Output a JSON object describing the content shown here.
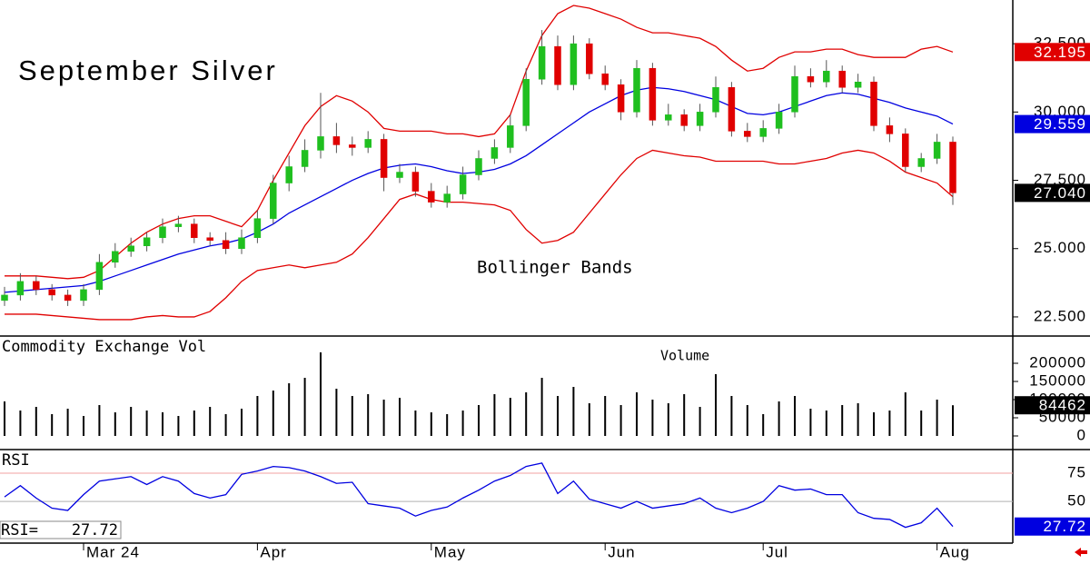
{
  "chart_data": [
    {
      "type": "candlestick",
      "title": "September Silver",
      "annotation": "Bollinger Bands",
      "up_color": "#1fbf1f",
      "down_color": "#e00000",
      "open": [
        23.1,
        23.3,
        23.8,
        23.5,
        23.3,
        23.1,
        23.5,
        24.5,
        24.9,
        25.1,
        25.4,
        25.8,
        25.9,
        25.4,
        25.3,
        25.0,
        25.4,
        26.1,
        27.4,
        28.0,
        28.6,
        29.1,
        28.8,
        28.7,
        29.0,
        27.6,
        27.8,
        27.1,
        26.7,
        27.0,
        27.7,
        28.3,
        28.7,
        29.5,
        31.2,
        32.4,
        31.0,
        32.5,
        31.4,
        31.0,
        30.0,
        31.6,
        29.7,
        29.9,
        29.5,
        30.0,
        30.9,
        29.3,
        29.1,
        29.4,
        30.0,
        31.3,
        31.1,
        31.5,
        30.9,
        31.1,
        29.5,
        29.2,
        28.0,
        28.3,
        28.9
      ],
      "high": [
        23.6,
        24.1,
        24.0,
        23.7,
        23.5,
        23.7,
        24.8,
        25.2,
        25.4,
        25.6,
        26.1,
        26.2,
        26.1,
        25.6,
        25.6,
        25.7,
        26.4,
        27.7,
        28.4,
        29.0,
        30.7,
        29.6,
        29.1,
        29.3,
        29.2,
        28.1,
        28.0,
        27.4,
        27.3,
        28.0,
        28.6,
        29.0,
        29.9,
        31.6,
        33.0,
        32.8,
        32.8,
        32.7,
        31.7,
        31.2,
        31.9,
        31.8,
        30.3,
        30.1,
        30.3,
        31.3,
        31.1,
        29.6,
        29.7,
        30.3,
        31.7,
        31.6,
        31.9,
        31.7,
        31.4,
        31.3,
        29.8,
        29.4,
        28.5,
        29.2,
        29.1
      ],
      "low": [
        22.9,
        23.1,
        23.3,
        23.1,
        22.9,
        22.9,
        23.3,
        24.3,
        24.7,
        24.9,
        25.2,
        25.6,
        25.2,
        25.1,
        24.8,
        24.8,
        25.2,
        25.9,
        27.1,
        27.8,
        28.3,
        28.5,
        28.4,
        28.5,
        27.1,
        27.4,
        26.9,
        26.5,
        26.5,
        26.8,
        27.5,
        28.1,
        28.5,
        29.3,
        31.0,
        30.8,
        30.8,
        31.2,
        30.8,
        29.7,
        29.8,
        29.5,
        29.5,
        29.3,
        29.3,
        29.8,
        29.1,
        28.9,
        28.9,
        29.2,
        29.8,
        30.9,
        30.9,
        30.7,
        30.7,
        29.3,
        28.9,
        27.8,
        27.8,
        28.1,
        26.6
      ],
      "close": [
        23.3,
        23.8,
        23.5,
        23.3,
        23.1,
        23.5,
        24.5,
        24.9,
        25.1,
        25.4,
        25.8,
        25.9,
        25.4,
        25.3,
        25.0,
        25.4,
        26.1,
        27.4,
        28.0,
        28.6,
        29.1,
        28.8,
        28.7,
        29.0,
        27.6,
        27.8,
        27.1,
        26.7,
        27.0,
        27.7,
        28.3,
        28.7,
        29.5,
        31.2,
        32.4,
        31.0,
        32.5,
        31.4,
        31.0,
        30.0,
        31.6,
        29.7,
        29.9,
        29.5,
        30.0,
        30.9,
        29.3,
        29.1,
        29.4,
        30.0,
        31.3,
        31.1,
        31.5,
        30.9,
        31.1,
        29.5,
        29.2,
        28.0,
        28.3,
        28.9,
        27.04
      ],
      "close_last_label": "27.040",
      "bands": [
        {
          "color": "#e00000",
          "last_label": "32.195",
          "values": [
            24.0,
            24.0,
            24.0,
            23.95,
            23.9,
            23.95,
            24.2,
            24.7,
            25.2,
            25.6,
            25.9,
            26.1,
            26.2,
            26.2,
            26.0,
            25.8,
            26.4,
            27.5,
            28.5,
            29.5,
            30.2,
            30.6,
            30.4,
            30.0,
            29.4,
            29.3,
            29.3,
            29.3,
            29.2,
            29.2,
            29.1,
            29.2,
            29.9,
            31.5,
            32.8,
            33.6,
            33.9,
            33.8,
            33.6,
            33.4,
            33.1,
            32.9,
            32.9,
            32.8,
            32.7,
            32.4,
            31.9,
            31.5,
            31.6,
            32.0,
            32.2,
            32.2,
            32.3,
            32.3,
            32.1,
            32.0,
            32.0,
            32.0,
            32.3,
            32.4,
            32.195
          ]
        },
        {
          "color": "#0000e0",
          "last_label": "29.559",
          "values": [
            23.4,
            23.45,
            23.5,
            23.55,
            23.6,
            23.65,
            23.8,
            24.0,
            24.2,
            24.4,
            24.6,
            24.8,
            24.95,
            25.1,
            25.2,
            25.35,
            25.6,
            25.9,
            26.3,
            26.6,
            26.9,
            27.2,
            27.5,
            27.75,
            27.95,
            28.05,
            28.1,
            28.0,
            27.85,
            27.75,
            27.8,
            27.9,
            28.1,
            28.4,
            28.8,
            29.2,
            29.6,
            30.0,
            30.3,
            30.6,
            30.8,
            30.9,
            30.85,
            30.75,
            30.6,
            30.45,
            30.2,
            29.95,
            29.9,
            30.0,
            30.2,
            30.4,
            30.6,
            30.7,
            30.65,
            30.5,
            30.35,
            30.15,
            30.0,
            29.85,
            29.559
          ]
        },
        {
          "color": "#e00000",
          "values": [
            22.6,
            22.6,
            22.6,
            22.55,
            22.5,
            22.45,
            22.4,
            22.4,
            22.4,
            22.5,
            22.55,
            22.5,
            22.5,
            22.7,
            23.2,
            23.8,
            24.2,
            24.3,
            24.4,
            24.3,
            24.4,
            24.5,
            24.8,
            25.4,
            26.1,
            26.8,
            27.0,
            26.8,
            26.7,
            26.7,
            26.65,
            26.6,
            26.4,
            25.7,
            25.2,
            25.3,
            25.6,
            26.3,
            27.0,
            27.7,
            28.3,
            28.6,
            28.5,
            28.4,
            28.35,
            28.2,
            28.2,
            28.2,
            28.2,
            28.1,
            28.1,
            28.2,
            28.3,
            28.5,
            28.6,
            28.5,
            28.2,
            27.8,
            27.6,
            27.4,
            26.9
          ]
        }
      ],
      "ylim": [
        21.8,
        34.1
      ],
      "yticks": [
        {
          "value": 22.5,
          "label": "22.500"
        },
        {
          "value": 25,
          "label": "25.000"
        },
        {
          "value": 27.5,
          "label": "27.500"
        },
        {
          "value": 30,
          "label": "30.000"
        },
        {
          "value": 32.5,
          "label": "32.500"
        }
      ]
    },
    {
      "type": "bar",
      "title": "Commodity Exchange Vol",
      "annotation": "Volume",
      "color": "#000000",
      "values": [
        95000,
        70000,
        80000,
        60000,
        75000,
        55000,
        85000,
        65000,
        80000,
        70000,
        65000,
        55000,
        70000,
        80000,
        60000,
        75000,
        110000,
        125000,
        145000,
        160000,
        230000,
        130000,
        110000,
        115000,
        100000,
        105000,
        70000,
        65000,
        60000,
        70000,
        85000,
        115000,
        105000,
        120000,
        160000,
        110000,
        135000,
        90000,
        110000,
        85000,
        120000,
        100000,
        90000,
        115000,
        80000,
        170000,
        110000,
        85000,
        60000,
        95000,
        110000,
        75000,
        70000,
        85000,
        90000,
        65000,
        70000,
        120000,
        70000,
        100000,
        84462
      ],
      "ylim": [
        -37500,
        275000
      ],
      "yticks": [
        0,
        50000,
        100000,
        150000,
        200000
      ]
    },
    {
      "type": "line",
      "title": "RSI",
      "readout_label": "RSI=",
      "color": "#0000e0",
      "values": [
        54,
        64,
        53,
        44,
        42,
        56,
        68,
        70,
        72,
        65,
        72,
        68,
        57,
        53,
        56,
        74,
        77,
        81,
        80,
        77,
        72,
        66,
        67,
        48,
        46,
        44,
        37,
        42,
        45,
        53,
        60,
        68,
        73,
        81,
        84,
        57,
        68,
        52,
        48,
        44,
        50,
        44,
        46,
        48,
        53,
        44,
        40,
        44,
        50,
        64,
        60,
        61,
        56,
        56,
        40,
        35,
        34,
        27,
        31,
        44,
        27.72
      ],
      "categories": [
        null,
        null,
        null,
        null,
        null,
        "Mar 24",
        null,
        null,
        null,
        null,
        null,
        null,
        null,
        null,
        null,
        null,
        "Apr",
        null,
        null,
        null,
        null,
        null,
        null,
        null,
        null,
        null,
        null,
        "May",
        null,
        null,
        null,
        null,
        null,
        null,
        null,
        null,
        null,
        null,
        "Jun",
        null,
        null,
        null,
        null,
        null,
        null,
        null,
        null,
        null,
        "Jul",
        null,
        null,
        null,
        null,
        null,
        null,
        null,
        null,
        null,
        null,
        "Aug",
        null
      ],
      "ylim": [
        13,
        96
      ],
      "yticks": [
        50,
        75
      ],
      "grid_colors": [
        "#b0b0b0",
        "#f0a0a0"
      ]
    }
  ]
}
